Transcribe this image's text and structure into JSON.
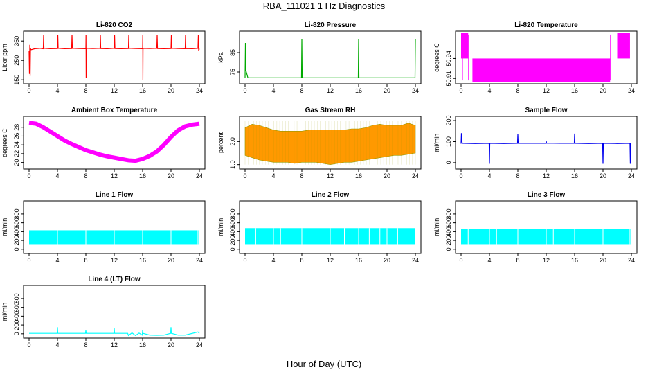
{
  "figure": {
    "title": "RBA_111021  1 Hz Diagnostics",
    "xlabel": "Hour of Day (UTC)"
  },
  "chart_data": [
    {
      "type": "line",
      "title": "Li-820 CO2",
      "ylabel": "Licor ppm",
      "color": "#ff0000",
      "xlim": [
        0,
        24
      ],
      "xticks": [
        0,
        4,
        8,
        12,
        16,
        20,
        24
      ],
      "ylim": [
        140,
        390
      ],
      "yticks": [
        150,
        250,
        350
      ],
      "x": [
        0,
        0.05,
        0.1,
        0.15,
        0.2,
        0.3,
        0.8,
        1.5,
        2,
        2.05,
        2.1,
        3,
        4,
        4.05,
        4.1,
        5,
        6,
        6.05,
        6.1,
        7,
        8,
        8.02,
        8.04,
        8.06,
        9,
        10,
        10.05,
        10.1,
        11,
        12,
        12.05,
        12.1,
        13,
        14,
        14.05,
        14.1,
        15,
        16,
        16.02,
        16.04,
        16.06,
        17,
        18,
        18.05,
        18.1,
        19,
        20,
        20.05,
        20.1,
        21,
        22,
        22.05,
        22.1,
        23,
        23.8,
        23.85,
        23.9,
        24
      ],
      "values": [
        300,
        180,
        330,
        170,
        310,
        305,
        310,
        312,
        310,
        382,
        312,
        310,
        311,
        382,
        312,
        310,
        311,
        382,
        312,
        311,
        310,
        382,
        160,
        312,
        311,
        312,
        382,
        311,
        310,
        312,
        382,
        311,
        310,
        311,
        382,
        312,
        311,
        310,
        382,
        150,
        312,
        311,
        312,
        382,
        311,
        310,
        311,
        382,
        312,
        311,
        310,
        382,
        311,
        310,
        312,
        380,
        300,
        310
      ]
    },
    {
      "type": "line",
      "title": "Li-820 Pressure",
      "ylabel": "kPa",
      "color": "#00aa00",
      "xlim": [
        0,
        24
      ],
      "xticks": [
        0,
        4,
        8,
        12,
        16,
        20,
        24
      ],
      "ylim": [
        70,
        95
      ],
      "yticks": [
        75,
        85
      ],
      "x": [
        0,
        0.05,
        0.1,
        0.4,
        1,
        4,
        7.95,
        8,
        8.05,
        12,
        15.95,
        16,
        16.05,
        20,
        23.95,
        24
      ],
      "values": [
        72,
        90,
        76,
        72,
        72,
        72,
        72,
        92,
        72,
        72,
        72,
        92,
        72,
        72,
        72,
        92
      ]
    },
    {
      "type": "area",
      "title": "Li-820 Temperature",
      "ylabel": "degrees C",
      "color": "#ff00ff",
      "xlim": [
        0,
        24
      ],
      "xticks": [
        0,
        4,
        8,
        12,
        16,
        20,
        24
      ],
      "ylim": [
        50.905,
        50.978
      ],
      "yticks": [
        50.91,
        50.94
      ],
      "ylabel_ticks": [
        "50.91",
        "50.94"
      ],
      "segments": [
        {
          "x0": 0.0,
          "x1": 1.0,
          "low": 50.94,
          "high": 50.978
        },
        {
          "x0": 1.6,
          "x1": 21.0,
          "low": 50.905,
          "high": 50.94
        },
        {
          "x0": 22.0,
          "x1": 23.8,
          "low": 50.94,
          "high": 50.978
        }
      ]
    },
    {
      "type": "line",
      "title": "Ambient Box Temperature",
      "ylabel": "degrees C",
      "color": "#ff00ff",
      "xlim": [
        0,
        24
      ],
      "xticks": [
        0,
        4,
        8,
        12,
        16,
        20,
        24
      ],
      "ylim": [
        19,
        30
      ],
      "yticks": [
        20,
        22,
        24,
        26,
        28
      ],
      "band": 0.6,
      "x": [
        0,
        1,
        2,
        3,
        4,
        5,
        6,
        7,
        8,
        9,
        10,
        11,
        12,
        13,
        14,
        15,
        16,
        17,
        18,
        19,
        20,
        21,
        22,
        23,
        24
      ],
      "values": [
        29.0,
        28.8,
        28.0,
        27.0,
        26.0,
        25.0,
        24.2,
        23.5,
        22.8,
        22.3,
        21.8,
        21.4,
        21.1,
        20.8,
        20.5,
        20.4,
        20.8,
        21.5,
        22.5,
        24.0,
        25.8,
        27.3,
        28.2,
        28.6,
        28.8
      ]
    },
    {
      "type": "area",
      "title": "Gas Stream RH",
      "ylabel": "percent",
      "color": "#ff9900",
      "color2": "#999900",
      "xlim": [
        0,
        24
      ],
      "xticks": [
        0,
        4,
        8,
        12,
        16,
        20,
        24
      ],
      "ylim": [
        0.9,
        3.0
      ],
      "yticks": [
        1.0,
        2.0
      ],
      "ylabel_ticks": [
        "1.0",
        "2.0"
      ],
      "x": [
        0,
        1,
        2,
        3,
        4,
        5,
        6,
        7,
        8,
        9,
        10,
        11,
        12,
        13,
        14,
        15,
        16,
        17,
        18,
        19,
        20,
        21,
        22,
        23,
        24
      ],
      "low": [
        1.4,
        1.3,
        1.2,
        1.15,
        1.1,
        1.1,
        1.1,
        1.05,
        1.1,
        1.1,
        1.1,
        1.05,
        1.0,
        1.05,
        1.1,
        1.1,
        1.15,
        1.2,
        1.25,
        1.3,
        1.35,
        1.4,
        1.4,
        1.45,
        1.5
      ],
      "high": [
        2.6,
        2.75,
        2.7,
        2.6,
        2.5,
        2.45,
        2.45,
        2.45,
        2.45,
        2.5,
        2.5,
        2.5,
        2.5,
        2.5,
        2.5,
        2.55,
        2.55,
        2.6,
        2.7,
        2.75,
        2.7,
        2.7,
        2.7,
        2.8,
        2.7
      ]
    },
    {
      "type": "line",
      "title": "Sample Flow",
      "ylabel": "ml/min",
      "color": "#0000ee",
      "xlim": [
        0,
        24
      ],
      "xticks": [
        0,
        4,
        8,
        12,
        16,
        20,
        24
      ],
      "ylim": [
        -20,
        210
      ],
      "yticks": [
        0,
        100,
        200
      ],
      "x": [
        0,
        0.05,
        0.1,
        0.2,
        2,
        3.95,
        4.0,
        4.05,
        6,
        7.95,
        8.0,
        8.05,
        10,
        11.95,
        12.0,
        12.05,
        14,
        15.95,
        16.0,
        16.05,
        18,
        19.95,
        20.0,
        20.05,
        22,
        23.8,
        23.85,
        23.9,
        24
      ],
      "values": [
        90,
        140,
        100,
        92,
        91,
        92,
        -5,
        92,
        91,
        92,
        135,
        92,
        92,
        92,
        103,
        93,
        92,
        92,
        138,
        92,
        91,
        92,
        -5,
        92,
        91,
        92,
        -5,
        92,
        92
      ]
    },
    {
      "type": "area",
      "title": "Line 1 Flow",
      "ylabel": "ml/min",
      "color": "#00ffff",
      "xlim": [
        0,
        24
      ],
      "xticks": [
        0,
        4,
        8,
        12,
        16,
        20,
        24
      ],
      "ylim": [
        -50,
        1050
      ],
      "yticks": [
        0,
        200,
        400,
        600,
        800
      ],
      "low": 100,
      "high": 430,
      "gaps": [
        4,
        8,
        12,
        16,
        20,
        23.8
      ]
    },
    {
      "type": "area",
      "title": "Line 2 Flow",
      "ylabel": "ml/min",
      "color": "#00ffff",
      "xlim": [
        0,
        24
      ],
      "xticks": [
        0,
        4,
        8,
        12,
        16,
        20,
        24
      ],
      "ylim": [
        -50,
        1050
      ],
      "yticks": [
        0,
        200,
        400,
        600,
        800
      ],
      "low": 100,
      "high": 480,
      "gaps": [
        1.5,
        4,
        5,
        8,
        12,
        14,
        16,
        17.5,
        19,
        20,
        21.5
      ]
    },
    {
      "type": "area",
      "title": "Line 3 Flow",
      "ylabel": "ml/min",
      "color": "#00ffff",
      "xlim": [
        0,
        24
      ],
      "xticks": [
        0,
        4,
        8,
        12,
        16,
        20,
        24
      ],
      "ylim": [
        -50,
        1050
      ],
      "yticks": [
        0,
        200,
        400,
        600,
        800
      ],
      "low": 100,
      "high": 460,
      "gaps": [
        1,
        4,
        5,
        8,
        12,
        13,
        16,
        20,
        23.8
      ]
    },
    {
      "type": "line",
      "title": "Line 4 (LT) Flow",
      "ylabel": "ml/min",
      "color": "#00ffff",
      "xlim": [
        0,
        24
      ],
      "xticks": [
        0,
        4,
        8,
        12,
        16,
        20,
        24
      ],
      "ylim": [
        -50,
        1050
      ],
      "yticks": [
        0,
        200,
        400,
        600,
        800
      ],
      "x": [
        0,
        3.95,
        4.0,
        4.05,
        7.95,
        8.0,
        8.05,
        11.95,
        12.0,
        12.05,
        13.9,
        14.0,
        14.5,
        15,
        15.5,
        15.95,
        16.0,
        16.05,
        17,
        18,
        19,
        19.95,
        20.0,
        20.05,
        21,
        22,
        23.8,
        24
      ],
      "values": [
        10,
        10,
        150,
        10,
        10,
        80,
        10,
        10,
        130,
        10,
        10,
        -40,
        20,
        -40,
        15,
        -30,
        80,
        10,
        -30,
        -35,
        -30,
        10,
        150,
        10,
        -30,
        -30,
        40,
        10
      ]
    }
  ]
}
